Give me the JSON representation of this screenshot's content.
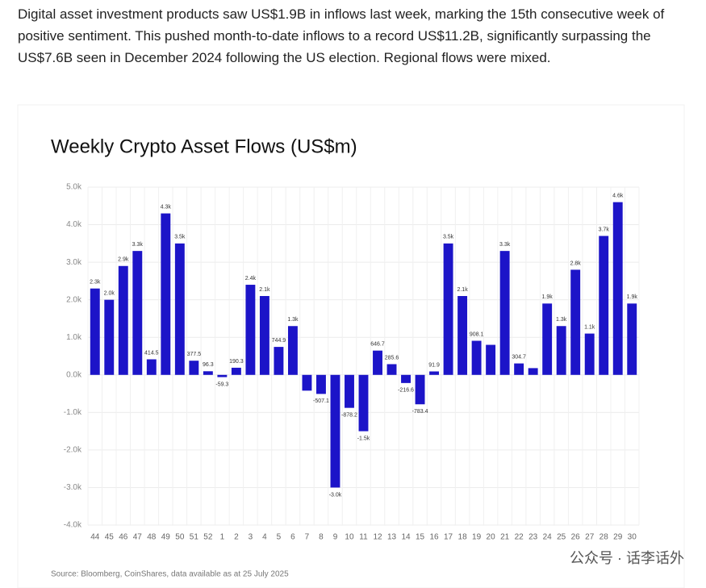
{
  "paragraph": "Digital asset investment products saw US$1.9B in inflows last week, marking the 15th consecutive week of positive sentiment. This pushed month-to-date inflows to a record US$11.2B, significantly surpassing the US$7.6B seen in December 2024 following the US election. Regional flows were mixed.",
  "watermark": "公众号 · 话李话外",
  "chart_data": {
    "type": "bar",
    "title": "Weekly Crypto Asset Flows (US$m)",
    "source": "Source: Bloomberg, CoinShares, data available as at 25 July 2025",
    "categories": [
      "44",
      "45",
      "46",
      "47",
      "48",
      "49",
      "50",
      "51",
      "52",
      "1",
      "2",
      "3",
      "4",
      "5",
      "6",
      "7",
      "8",
      "9",
      "10",
      "11",
      "12",
      "13",
      "14",
      "15",
      "16",
      "17",
      "18",
      "19",
      "20",
      "21",
      "22",
      "23",
      "24",
      "25",
      "26",
      "27",
      "28",
      "29",
      "30"
    ],
    "values": [
      2300,
      2000,
      2900,
      3300,
      414.5,
      4300,
      3500,
      377.5,
      96.3,
      -59.3,
      190.3,
      2400,
      2100,
      744.9,
      1300,
      -420,
      -507.1,
      -3000,
      -878.2,
      -1500,
      646.7,
      285.6,
      -216.6,
      -783.4,
      91.9,
      3500,
      2100,
      908.1,
      800,
      3300,
      304.7,
      180,
      1900,
      1300,
      2800,
      1100,
      3700,
      4600,
      1900
    ],
    "value_labels": [
      "2.3k",
      "2.0k",
      "2.9k",
      "3.3k",
      "414.5",
      "4.3k",
      "3.5k",
      "377.5",
      "96.3",
      "-59.3",
      "190.3",
      "2.4k",
      "2.1k",
      "744.9",
      "1.3k",
      null,
      "-507.1",
      "-3.0k",
      "-878.2",
      "-1.5k",
      "646.7",
      "285.6",
      "-216.6",
      "-783.4",
      "91.9",
      "3.5k",
      "2.1k",
      "908.1",
      null,
      "3.3k",
      "304.7",
      null,
      "1.9k",
      "1.3k",
      "2.8k",
      "1.1k",
      "3.7k",
      "4.6k",
      "1.9k"
    ],
    "color": "#1c14c8",
    "ylim": [
      -4000,
      5000
    ],
    "yticks": [
      {
        "value": -4000,
        "label": "-4.0k"
      },
      {
        "value": -3000,
        "label": "-3.0k"
      },
      {
        "value": -2000,
        "label": "-2.0k"
      },
      {
        "value": -1000,
        "label": "-1.0k"
      },
      {
        "value": 0,
        "label": "0.0k"
      },
      {
        "value": 1000,
        "label": "1.0k"
      },
      {
        "value": 2000,
        "label": "2.0k"
      },
      {
        "value": 3000,
        "label": "3.0k"
      },
      {
        "value": 4000,
        "label": "4.0k"
      },
      {
        "value": 5000,
        "label": "5.0k"
      }
    ],
    "grid": true
  }
}
